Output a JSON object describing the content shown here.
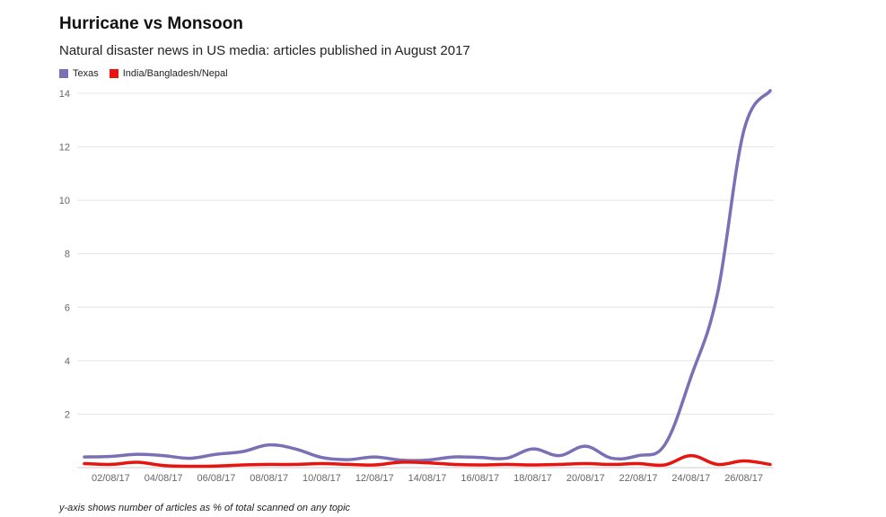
{
  "chart_data": {
    "type": "line",
    "title": "Hurricane vs Monsoon",
    "subtitle": "Natural disaster news in US media: articles published in August 2017",
    "footnote": "y-axis shows number of articles as % of total scanned on any topic",
    "legend_position": "top-left",
    "grid": true,
    "ylim": [
      0,
      14
    ],
    "yticks": [
      2,
      4,
      6,
      8,
      10,
      12,
      14
    ],
    "x": [
      "01/08/17",
      "02/08/17",
      "03/08/17",
      "04/08/17",
      "05/08/17",
      "06/08/17",
      "07/08/17",
      "08/08/17",
      "09/08/17",
      "10/08/17",
      "11/08/17",
      "12/08/17",
      "13/08/17",
      "14/08/17",
      "15/08/17",
      "16/08/17",
      "17/08/17",
      "18/08/17",
      "19/08/17",
      "20/08/17",
      "21/08/17",
      "22/08/17",
      "23/08/17",
      "24/08/17",
      "25/08/17",
      "26/08/17",
      "27/08/17"
    ],
    "xtick_labels": [
      "02/08/17",
      "04/08/17",
      "06/08/17",
      "08/08/17",
      "10/08/17",
      "12/08/17",
      "14/08/17",
      "16/08/17",
      "18/08/17",
      "20/08/17",
      "22/08/17",
      "24/08/17",
      "26/08/17"
    ],
    "series": [
      {
        "name": "Texas",
        "color": "#7b6fb5",
        "values": [
          0.4,
          0.42,
          0.5,
          0.45,
          0.35,
          0.5,
          0.6,
          0.85,
          0.7,
          0.38,
          0.3,
          0.4,
          0.28,
          0.28,
          0.4,
          0.38,
          0.35,
          0.7,
          0.45,
          0.8,
          0.35,
          0.45,
          0.85,
          3.4,
          6.5,
          12.6,
          14.1
        ]
      },
      {
        "name": "India/Bangladesh/Nepal",
        "color": "#e8140f",
        "values": [
          0.15,
          0.12,
          0.2,
          0.08,
          0.05,
          0.06,
          0.1,
          0.12,
          0.12,
          0.15,
          0.12,
          0.1,
          0.2,
          0.18,
          0.12,
          0.1,
          0.12,
          0.1,
          0.12,
          0.15,
          0.12,
          0.15,
          0.1,
          0.45,
          0.12,
          0.25,
          0.12
        ]
      }
    ]
  }
}
